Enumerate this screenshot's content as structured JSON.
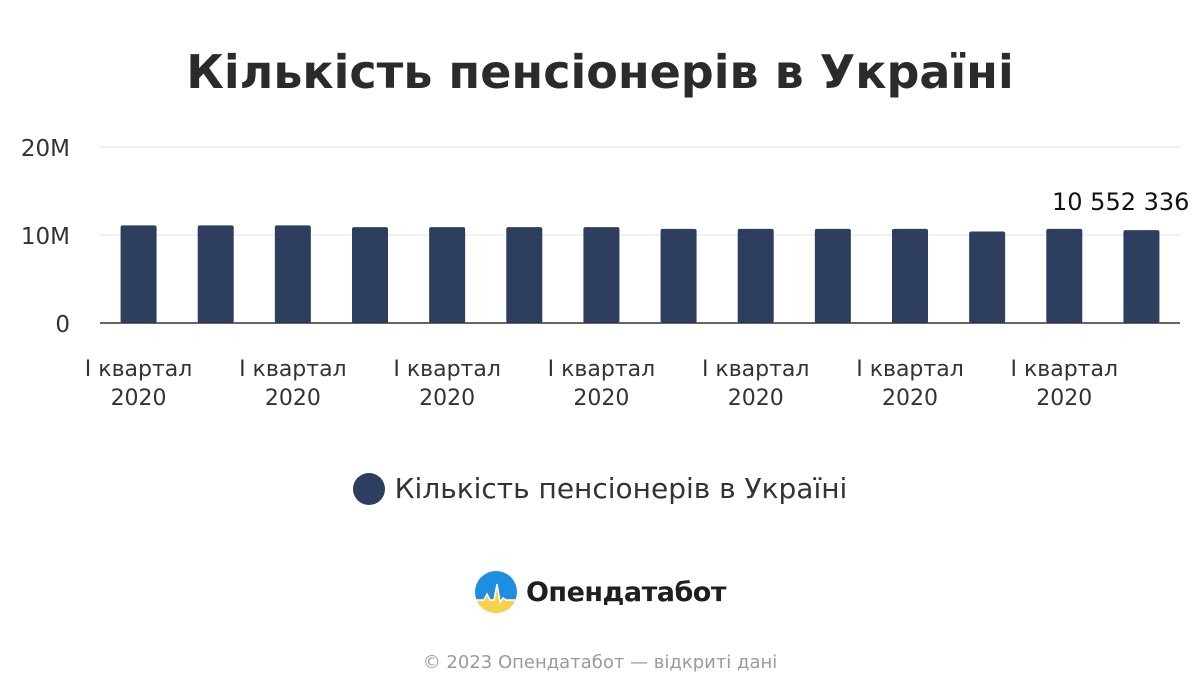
{
  "chart_data": {
    "type": "bar",
    "title": "Кількість пенсіонерів в Україні",
    "categories": [
      "I квартал 2020",
      "",
      "I квартал 2020",
      "",
      "I квартал 2020",
      "",
      "I квартал 2020",
      "",
      "I квартал 2020",
      "",
      "I квартал 2020",
      "",
      "I квартал 2020",
      ""
    ],
    "series": [
      {
        "name": "Кількість пенсіонерів в Україні",
        "values": [
          11100000,
          11100000,
          11100000,
          10900000,
          10900000,
          10900000,
          10900000,
          10700000,
          10700000,
          10700000,
          10700000,
          10400000,
          10700000,
          10552336
        ]
      }
    ],
    "ylim": [
      0,
      20000000
    ],
    "yticks": [
      "0",
      "10M",
      "20M"
    ],
    "grid": true,
    "legend_position": "bottom",
    "data_label": "10 552 336",
    "colors": {
      "bar": "#2e3e5e",
      "grid": "#e3e3e3",
      "axis": "#333333"
    }
  },
  "legend": {
    "label": "Кількість пенсіонерів в Україні",
    "color": "#2e3e5e"
  },
  "brand": {
    "name": "Опендатабот",
    "icon": "opendatabot-logo-icon"
  },
  "footer": {
    "text": "© 2023 Опендатабот — відкриті дані"
  }
}
